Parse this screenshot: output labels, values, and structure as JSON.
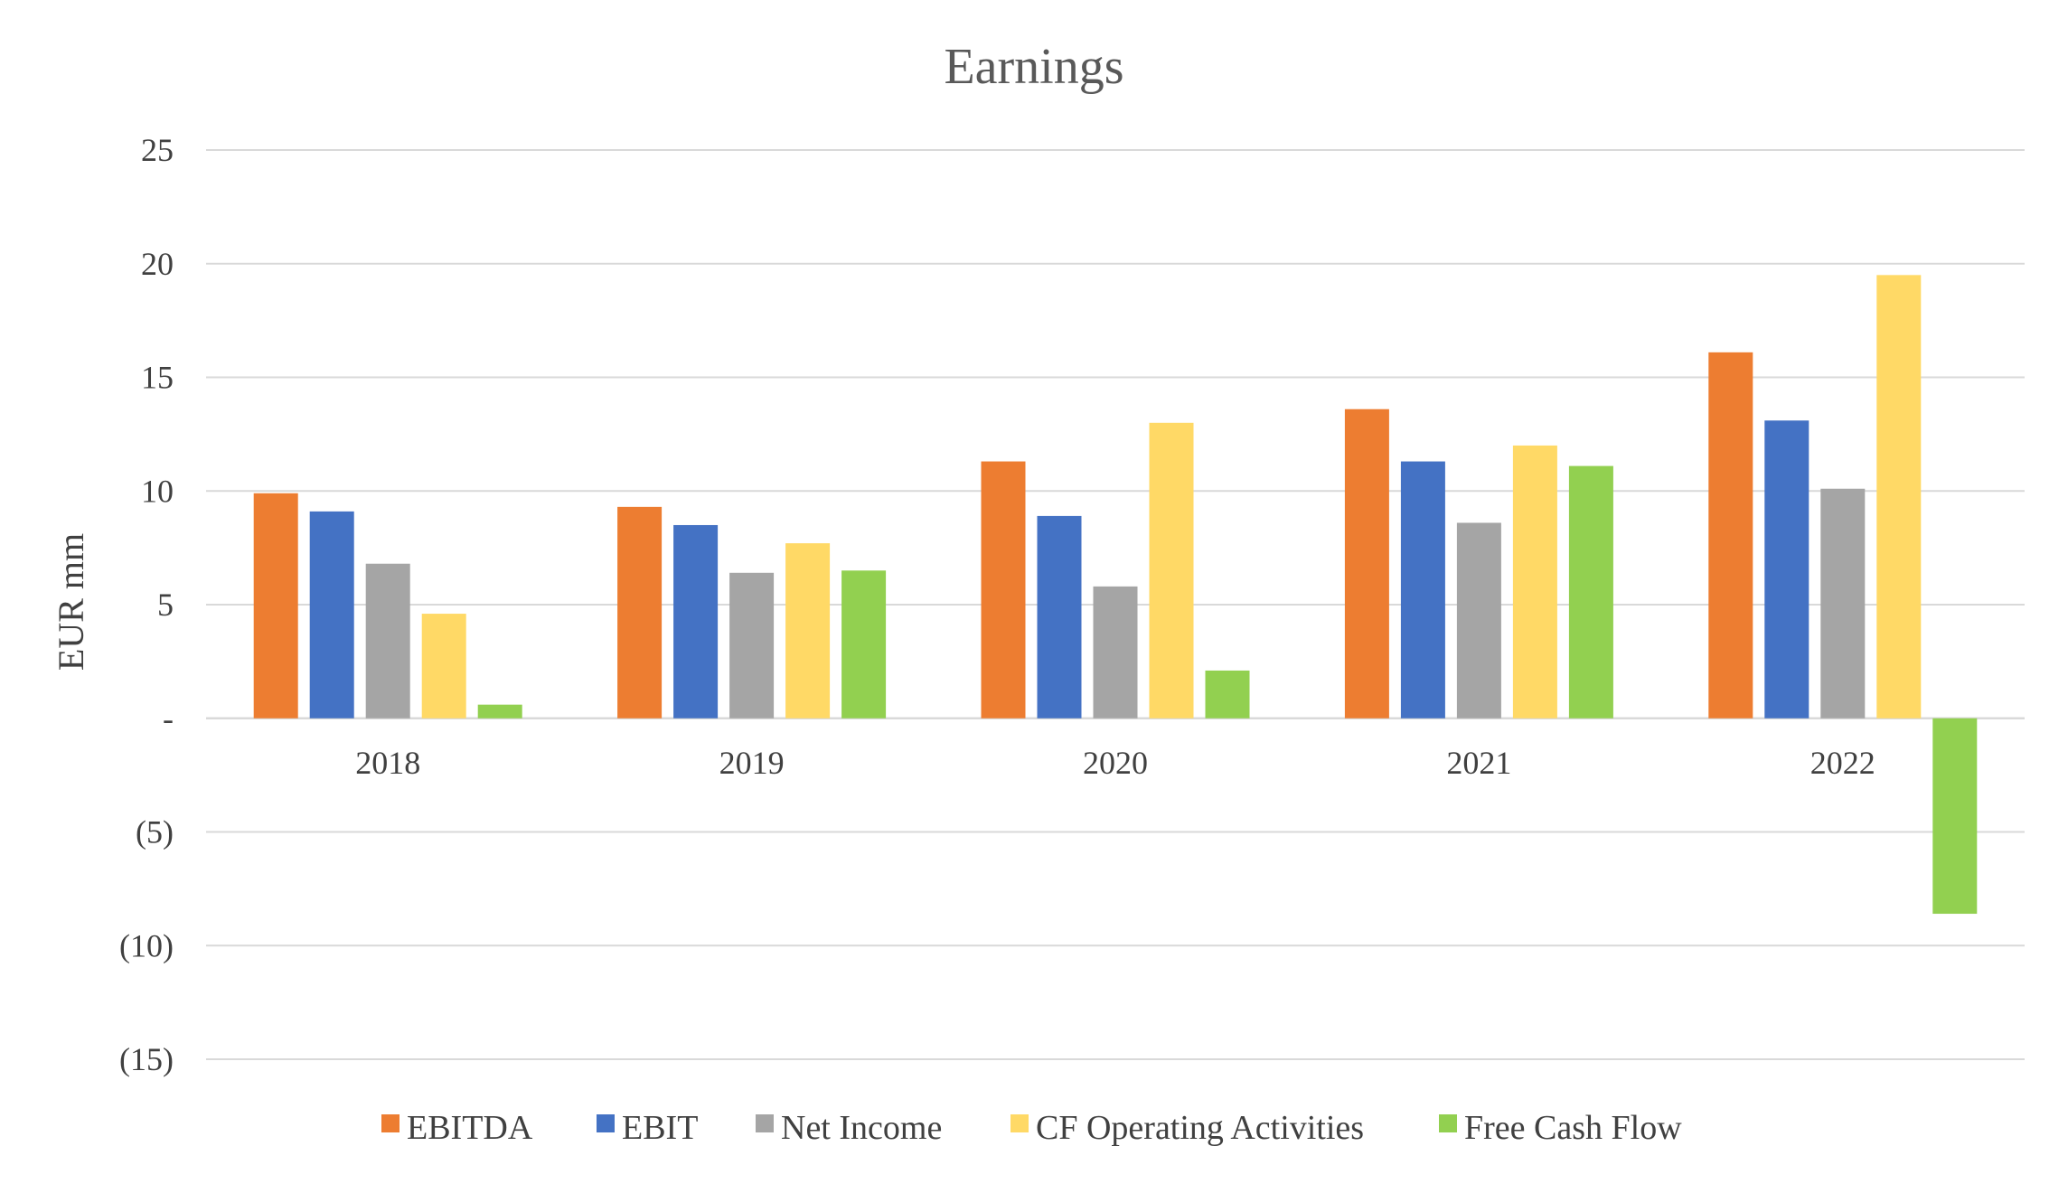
{
  "chart_data": {
    "type": "bar",
    "title": "Earnings",
    "xlabel": "",
    "ylabel": "EUR mm",
    "categories": [
      "2018",
      "2019",
      "2020",
      "2021",
      "2022"
    ],
    "ylim": [
      -15,
      25
    ],
    "yticks": [
      25,
      20,
      15,
      10,
      5,
      0,
      -5,
      -10,
      -15
    ],
    "ytick_labels": [
      "25",
      "20",
      "15",
      "10",
      "5",
      "-",
      "(5)",
      "(10)",
      "(15)"
    ],
    "grid": true,
    "legend_position": "bottom",
    "series": [
      {
        "name": "EBITDA",
        "color": "#ED7D31",
        "values": [
          9.9,
          9.3,
          11.3,
          13.6,
          16.1
        ]
      },
      {
        "name": "EBIT",
        "color": "#4472C4",
        "values": [
          9.1,
          8.5,
          8.9,
          11.3,
          13.1
        ]
      },
      {
        "name": "Net Income",
        "color": "#A5A5A5",
        "values": [
          6.8,
          6.4,
          5.8,
          8.6,
          10.1
        ]
      },
      {
        "name": "CF Operating Activities",
        "color": "#FFD966",
        "values": [
          4.6,
          7.7,
          13.0,
          12.0,
          19.5
        ]
      },
      {
        "name": "Free Cash Flow",
        "color": "#92D050",
        "values": [
          0.6,
          6.5,
          2.1,
          11.1,
          -8.6
        ]
      }
    ]
  }
}
